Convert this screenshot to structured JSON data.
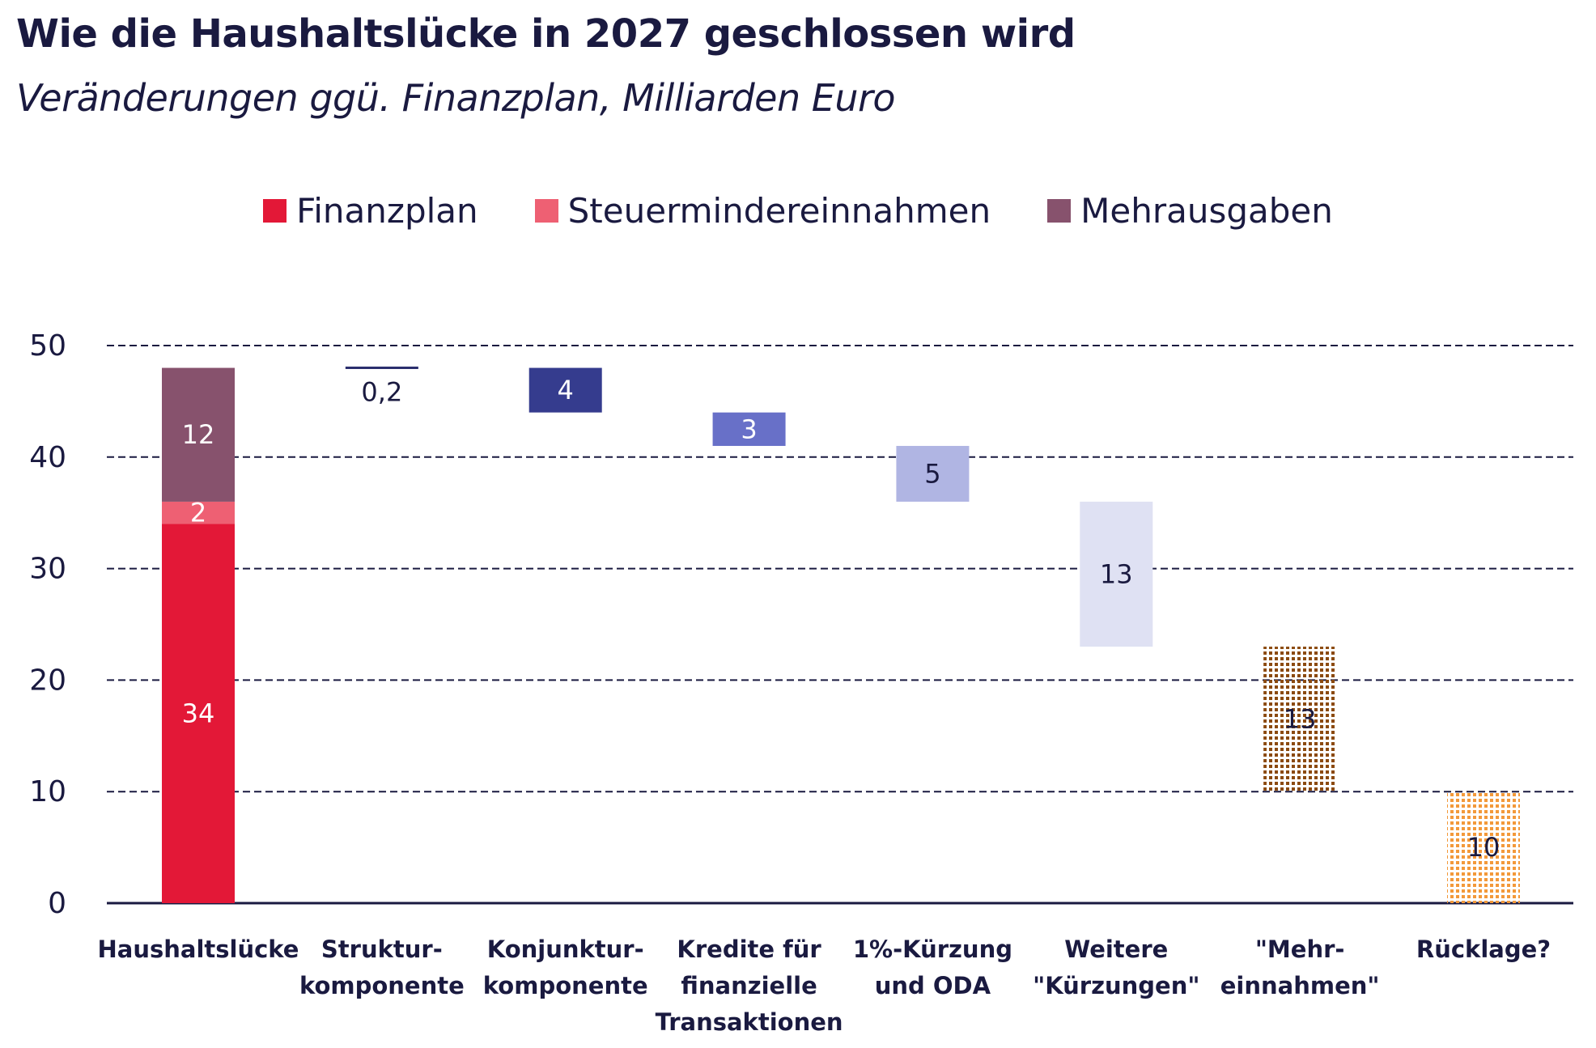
{
  "title": "Wie die Haushaltslücke in 2027 geschlossen wird",
  "subtitle": "Veränderungen ggü. Finanzplan, Milliarden Euro",
  "legend": [
    {
      "label": "Finanzplan",
      "color": "#e31837"
    },
    {
      "label": "Steuermindereinnahmen",
      "color": "#ee6073"
    },
    {
      "label": "Mehrausgaben",
      "color": "#87526d"
    }
  ],
  "chart_data": {
    "type": "bar",
    "subtype": "waterfall",
    "title": "Wie die Haushaltslücke in 2027 geschlossen wird",
    "subtitle": "Veränderungen ggü. Finanzplan, Milliarden Euro",
    "xlabel": "",
    "ylabel": "",
    "ylim": [
      0,
      50
    ],
    "yticks": [
      0,
      10,
      20,
      30,
      40,
      50
    ],
    "grid": true,
    "legend_position": "top-center",
    "categories": [
      [
        "Haushaltslücke"
      ],
      [
        "Struktur-",
        "komponente"
      ],
      [
        "Konjunktur-",
        "komponente"
      ],
      [
        "Kredite für",
        "finanzielle",
        "Transaktionen"
      ],
      [
        "1%-Kürzung",
        "und ODA"
      ],
      [
        "Weitere",
        "\"Kürzungen\""
      ],
      [
        "\"Mehr-",
        "einnahmen\""
      ],
      [
        "Rücklage?"
      ]
    ],
    "stacked_total": {
      "category_index": 0,
      "segments": [
        {
          "name": "Finanzplan",
          "value": 34,
          "label": "34",
          "color": "#e31837",
          "label_color": "#ffffff"
        },
        {
          "name": "Steuermindereinnahmen",
          "value": 2,
          "label": "2",
          "color": "#ee6073",
          "label_color": "#ffffff"
        },
        {
          "name": "Mehrausgaben",
          "value": 12,
          "label": "12",
          "color": "#87526d",
          "label_color": "#ffffff"
        }
      ]
    },
    "steps": [
      {
        "category_index": 1,
        "value": 0.2,
        "label": "0,2",
        "from": 48.2,
        "to": 48,
        "color": "#2b2f6e",
        "label_color": "#1a1a40",
        "style": "line"
      },
      {
        "category_index": 2,
        "value": 4,
        "label": "4",
        "from": 48,
        "to": 44,
        "color": "#353c8e",
        "label_color": "#ffffff",
        "style": "solid"
      },
      {
        "category_index": 3,
        "value": 3,
        "label": "3",
        "from": 44,
        "to": 41,
        "color": "#6870c8",
        "label_color": "#ffffff",
        "style": "solid"
      },
      {
        "category_index": 4,
        "value": 5,
        "label": "5",
        "from": 41,
        "to": 36,
        "color": "#b0b5e3",
        "label_color": "#1a1a40",
        "style": "solid"
      },
      {
        "category_index": 5,
        "value": 13,
        "label": "13",
        "from": 36,
        "to": 23,
        "color": "#dfe1f3",
        "label_color": "#1a1a40",
        "style": "solid"
      },
      {
        "category_index": 6,
        "value": 13,
        "label": "13",
        "from": 23,
        "to": 10,
        "color": "#8b4a0f",
        "label_color": "#1a1a40",
        "style": "dotted"
      },
      {
        "category_index": 7,
        "value": 10,
        "label": "10",
        "from": 10,
        "to": 0,
        "color": "#f3993a",
        "label_color": "#1a1a40",
        "style": "dotted"
      }
    ]
  }
}
